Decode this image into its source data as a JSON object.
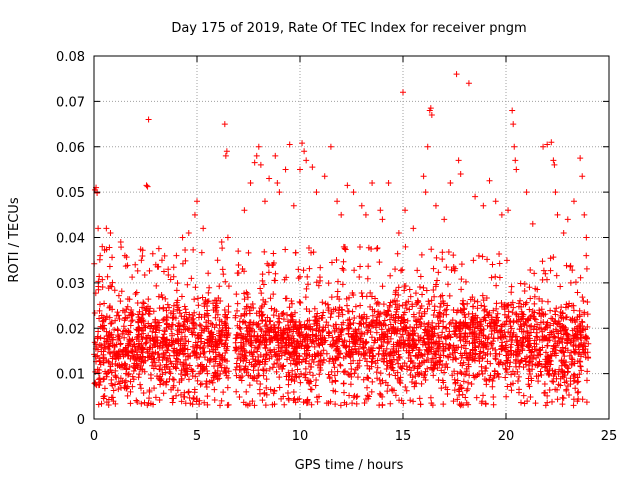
{
  "chart_data": {
    "type": "scatter",
    "title": "Day 175 of 2019, Rate Of TEC Index for receiver pngm",
    "xlabel": "GPS time / hours",
    "ylabel": "ROTI / TECUs",
    "xlim": [
      0,
      25
    ],
    "ylim": [
      0,
      0.08
    ],
    "x_ticks": [
      0,
      5,
      10,
      15,
      20,
      25
    ],
    "x_tick_labels": [
      "0",
      "5",
      "10",
      "15",
      "20",
      "25"
    ],
    "y_ticks": [
      0,
      0.01,
      0.02,
      0.03,
      0.04,
      0.05,
      0.06,
      0.07,
      0.08
    ],
    "y_tick_labels": [
      "0",
      "0.01",
      "0.02",
      "0.03",
      "0.04",
      "0.05",
      "0.06",
      "0.07",
      "0.08"
    ],
    "grid": true,
    "marker": "plus",
    "series": [
      {
        "name": "pngm ROTI",
        "color": "#ff0000",
        "points": [
          [
            0.05,
            0.0505
          ],
          [
            0.1,
            0.051
          ],
          [
            0.15,
            0.0498
          ],
          [
            0.2,
            0.042
          ],
          [
            0.3,
            0.036
          ],
          [
            0.4,
            0.038
          ],
          [
            0.6,
            0.042
          ],
          [
            0.8,
            0.041
          ],
          [
            1.3,
            0.039
          ],
          [
            1.5,
            0.036
          ],
          [
            2.0,
            0.034
          ],
          [
            2.3,
            0.035
          ],
          [
            2.55,
            0.0515
          ],
          [
            2.6,
            0.0512
          ],
          [
            2.65,
            0.066
          ],
          [
            3.0,
            0.034
          ],
          [
            3.3,
            0.035
          ],
          [
            3.6,
            0.033
          ],
          [
            4.0,
            0.036
          ],
          [
            4.3,
            0.04
          ],
          [
            4.6,
            0.041
          ],
          [
            4.9,
            0.045
          ],
          [
            5.0,
            0.048
          ],
          [
            5.3,
            0.042
          ],
          [
            6.0,
            0.035
          ],
          [
            6.2,
            0.039
          ],
          [
            6.35,
            0.065
          ],
          [
            6.4,
            0.058
          ],
          [
            6.45,
            0.059
          ],
          [
            6.5,
            0.04
          ],
          [
            7.0,
            0.037
          ],
          [
            7.3,
            0.046
          ],
          [
            7.6,
            0.052
          ],
          [
            7.8,
            0.0565
          ],
          [
            7.9,
            0.058
          ],
          [
            8.0,
            0.06
          ],
          [
            8.1,
            0.056
          ],
          [
            8.3,
            0.048
          ],
          [
            8.5,
            0.053
          ],
          [
            8.8,
            0.058
          ],
          [
            8.9,
            0.052
          ],
          [
            9.0,
            0.05
          ],
          [
            9.3,
            0.055
          ],
          [
            9.5,
            0.0605
          ],
          [
            9.7,
            0.047
          ],
          [
            10.0,
            0.055
          ],
          [
            10.1,
            0.0608
          ],
          [
            10.2,
            0.059
          ],
          [
            10.3,
            0.057
          ],
          [
            10.6,
            0.0555
          ],
          [
            10.8,
            0.05
          ],
          [
            11.2,
            0.0535
          ],
          [
            11.5,
            0.06
          ],
          [
            11.8,
            0.048
          ],
          [
            12.0,
            0.045
          ],
          [
            12.3,
            0.0515
          ],
          [
            12.6,
            0.05
          ],
          [
            13.0,
            0.047
          ],
          [
            13.2,
            0.045
          ],
          [
            13.5,
            0.052
          ],
          [
            13.9,
            0.046
          ],
          [
            14.0,
            0.044
          ],
          [
            14.3,
            0.052
          ],
          [
            14.8,
            0.041
          ],
          [
            15.0,
            0.072
          ],
          [
            15.1,
            0.046
          ],
          [
            15.5,
            0.042
          ],
          [
            16.0,
            0.0535
          ],
          [
            16.1,
            0.05
          ],
          [
            16.3,
            0.068
          ],
          [
            16.35,
            0.0685
          ],
          [
            16.4,
            0.067
          ],
          [
            16.2,
            0.06
          ],
          [
            16.6,
            0.047
          ],
          [
            17.0,
            0.044
          ],
          [
            17.3,
            0.052
          ],
          [
            17.6,
            0.076
          ],
          [
            17.7,
            0.057
          ],
          [
            17.8,
            0.054
          ],
          [
            18.2,
            0.074
          ],
          [
            18.5,
            0.049
          ],
          [
            18.9,
            0.047
          ],
          [
            19.2,
            0.0525
          ],
          [
            19.5,
            0.048
          ],
          [
            19.8,
            0.045
          ],
          [
            20.1,
            0.046
          ],
          [
            20.3,
            0.068
          ],
          [
            20.35,
            0.065
          ],
          [
            20.4,
            0.06
          ],
          [
            20.45,
            0.057
          ],
          [
            20.5,
            0.055
          ],
          [
            21.0,
            0.05
          ],
          [
            21.3,
            0.043
          ],
          [
            21.8,
            0.06
          ],
          [
            22.0,
            0.0605
          ],
          [
            22.2,
            0.061
          ],
          [
            22.3,
            0.057
          ],
          [
            22.35,
            0.056
          ],
          [
            22.4,
            0.05
          ],
          [
            22.5,
            0.045
          ],
          [
            22.8,
            0.041
          ],
          [
            23.0,
            0.044
          ],
          [
            23.3,
            0.048
          ],
          [
            23.6,
            0.0575
          ],
          [
            23.7,
            0.0535
          ],
          [
            23.8,
            0.045
          ],
          [
            23.9,
            0.04
          ]
        ]
      }
    ],
    "bulk": {
      "x_range": [
        0,
        24
      ],
      "y_range": [
        0.003,
        0.038
      ],
      "dense_y_range": [
        0.006,
        0.028
      ],
      "gap_x": [
        6.55,
        6.85
      ],
      "count": 3600,
      "seed": 1750
    }
  }
}
